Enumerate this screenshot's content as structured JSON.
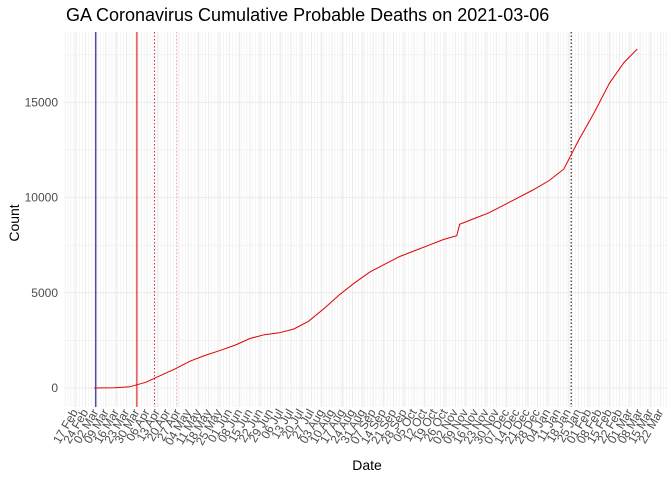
{
  "chart_data": {
    "type": "line",
    "title": "GA Coronavirus Cumulative Probable Deaths on 2021-03-06",
    "xlabel": "Date",
    "ylabel": "Count",
    "ylim": [
      -1000,
      18700
    ],
    "y_ticks": [
      0,
      5000,
      10000,
      15000
    ],
    "x_ticks": [
      "17 Feb",
      "24 Feb",
      "02 Mar",
      "09 Mar",
      "16 Mar",
      "23 Mar",
      "30 Mar",
      "06 Apr",
      "13 Apr",
      "20 Apr",
      "27 Apr",
      "04 May",
      "11 May",
      "18 May",
      "25 May",
      "01 Jun",
      "08 Jun",
      "15 Jun",
      "22 Jun",
      "29 Jun",
      "06 Jul",
      "13 Jul",
      "20 Jul",
      "27 Jul",
      "03 Aug",
      "10 Aug",
      "17 Aug",
      "24 Aug",
      "31 Aug",
      "07 Sep",
      "14 Sep",
      "21 Sep",
      "28 Sep",
      "05 Oct",
      "12 Oct",
      "19 Oct",
      "26 Oct",
      "02 Nov",
      "09 Nov",
      "16 Nov",
      "23 Nov",
      "30 Nov",
      "07 Dec",
      "14 Dec",
      "21 Dec",
      "28 Dec",
      "04 Jan",
      "11 Jan",
      "18 Jan",
      "25 Jan",
      "01 Feb",
      "08 Feb",
      "15 Feb",
      "22 Feb",
      "01 Mar",
      "08 Mar",
      "15 Mar",
      "22 Mar"
    ],
    "grid": true,
    "colors": {
      "series": "#e00000",
      "blue_line": "#00008b",
      "red_line": "#e00000",
      "dotted_red": "#cc3333",
      "dotted_pink": "#f4b6b6",
      "dotted_black": "#000000",
      "grid": "#ebebeb"
    },
    "reference_lines": [
      {
        "date": "2020-03-02",
        "style": "solid",
        "color": "blue_line"
      },
      {
        "date": "2020-03-30",
        "style": "solid",
        "color": "red_line"
      },
      {
        "date": "2020-04-11",
        "style": "dotted",
        "color": "dotted_red"
      },
      {
        "date": "2020-04-26",
        "style": "dotted",
        "color": "dotted_pink"
      },
      {
        "date": "2021-01-20",
        "style": "dotted",
        "color": "dotted_black"
      }
    ],
    "series": [
      {
        "x": [
          "2020-03-01",
          "2020-03-15",
          "2020-03-25",
          "2020-04-05",
          "2020-04-15",
          "2020-04-25",
          "2020-05-05",
          "2020-05-15",
          "2020-05-25",
          "2020-06-05",
          "2020-06-15",
          "2020-06-25",
          "2020-07-05",
          "2020-07-15",
          "2020-07-25",
          "2020-08-05",
          "2020-08-15",
          "2020-08-25",
          "2020-09-05",
          "2020-09-15",
          "2020-09-25",
          "2020-10-05",
          "2020-10-15",
          "2020-10-25",
          "2020-11-03",
          "2020-11-05",
          "2020-11-15",
          "2020-11-25",
          "2020-12-05",
          "2020-12-15",
          "2020-12-25",
          "2021-01-05",
          "2021-01-15",
          "2021-01-25",
          "2021-02-05",
          "2021-02-15",
          "2021-02-25",
          "2021-03-06"
        ],
        "y": [
          0,
          10,
          60,
          300,
          650,
          1000,
          1400,
          1700,
          1950,
          2250,
          2600,
          2800,
          2900,
          3100,
          3500,
          4200,
          4900,
          5500,
          6100,
          6500,
          6900,
          7200,
          7500,
          7800,
          8000,
          8600,
          8900,
          9200,
          9600,
          10000,
          10400,
          10900,
          11500,
          13000,
          14500,
          16000,
          17100,
          17800
        ]
      }
    ]
  }
}
